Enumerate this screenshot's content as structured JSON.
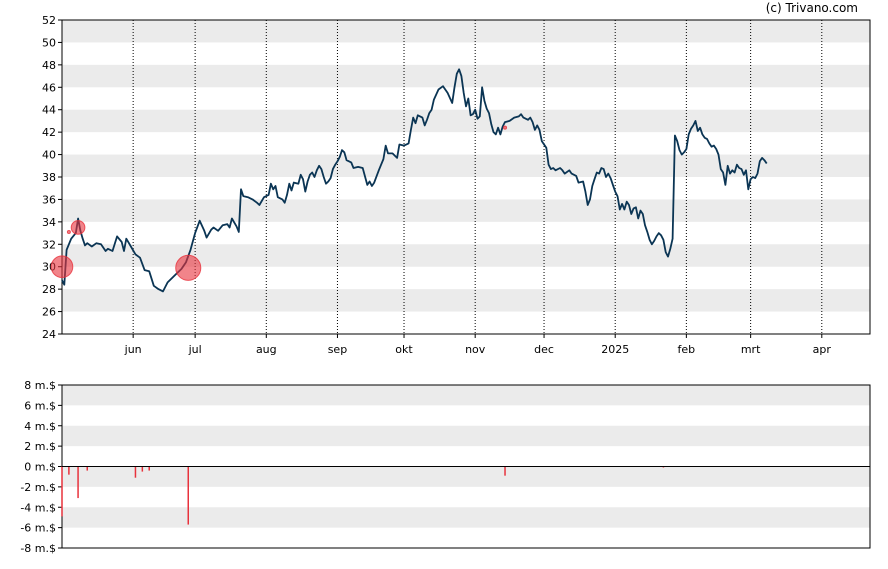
{
  "credit": "(c) Trivano.com",
  "chart_data": [
    {
      "type": "line",
      "ylim": [
        24,
        52
      ],
      "yticks": [
        24,
        26,
        28,
        30,
        32,
        34,
        36,
        38,
        40,
        42,
        44,
        46,
        48,
        50,
        52
      ],
      "xlim": [
        0,
        352
      ],
      "month_ticks": [
        {
          "label": "jun",
          "x": 31
        },
        {
          "label": "jul",
          "x": 58
        },
        {
          "label": "aug",
          "x": 89
        },
        {
          "label": "sep",
          "x": 120
        },
        {
          "label": "okt",
          "x": 149
        },
        {
          "label": "nov",
          "x": 180
        },
        {
          "label": "dec",
          "x": 210
        },
        {
          "label": "2025",
          "x": 241
        },
        {
          "label": "feb",
          "x": 272
        },
        {
          "label": "mrt",
          "x": 300
        },
        {
          "label": "apr",
          "x": 331
        }
      ],
      "grid": "alternating horizontal bands, dotted vertical lines at month ticks",
      "colors": {
        "line": "#0b3554",
        "marker": "#e8323c",
        "band": "#ebebeb"
      },
      "series": [
        {
          "points": [
            [
              0,
              28.8
            ],
            [
              1,
              28.4
            ],
            [
              2,
              31.5
            ],
            [
              4,
              32.5
            ],
            [
              6,
              33.0
            ],
            [
              7,
              34.3
            ],
            [
              8,
              33.2
            ],
            [
              9,
              32.5
            ],
            [
              10,
              31.9
            ],
            [
              11,
              32.1
            ],
            [
              13,
              31.8
            ],
            [
              15,
              32.1
            ],
            [
              17,
              32.0
            ],
            [
              19,
              31.4
            ],
            [
              20,
              31.6
            ],
            [
              22,
              31.4
            ],
            [
              24,
              32.7
            ],
            [
              26,
              32.2
            ],
            [
              27,
              31.4
            ],
            [
              28,
              32.5
            ],
            [
              30,
              31.8
            ],
            [
              32,
              31.1
            ],
            [
              34,
              30.8
            ],
            [
              36,
              29.7
            ],
            [
              38,
              29.6
            ],
            [
              40,
              28.3
            ],
            [
              42,
              28.0
            ],
            [
              44,
              27.8
            ],
            [
              46,
              28.6
            ],
            [
              48,
              29.0
            ],
            [
              50,
              29.4
            ],
            [
              52,
              29.8
            ],
            [
              54,
              30.4
            ],
            [
              56,
              31.5
            ],
            [
              58,
              33.0
            ],
            [
              60,
              34.1
            ],
            [
              62,
              33.2
            ],
            [
              63,
              32.6
            ],
            [
              65,
              33.3
            ],
            [
              66,
              33.5
            ],
            [
              68,
              33.2
            ],
            [
              70,
              33.7
            ],
            [
              72,
              33.8
            ],
            [
              73,
              33.5
            ],
            [
              74,
              34.3
            ],
            [
              76,
              33.6
            ],
            [
              77,
              33.1
            ],
            [
              78,
              36.9
            ],
            [
              79,
              36.3
            ],
            [
              81,
              36.2
            ],
            [
              83,
              36.0
            ],
            [
              85,
              35.7
            ],
            [
              86,
              35.5
            ],
            [
              88,
              36.2
            ],
            [
              90,
              36.4
            ],
            [
              91,
              37.4
            ],
            [
              92,
              36.9
            ],
            [
              93,
              37.2
            ],
            [
              94,
              36.2
            ],
            [
              96,
              36.0
            ],
            [
              97,
              35.7
            ],
            [
              98,
              36.4
            ],
            [
              99,
              37.4
            ],
            [
              100,
              36.8
            ],
            [
              101,
              37.5
            ],
            [
              103,
              37.4
            ],
            [
              104,
              38.2
            ],
            [
              105,
              37.8
            ],
            [
              106,
              36.7
            ],
            [
              107,
              37.6
            ],
            [
              108,
              38.2
            ],
            [
              109,
              38.4
            ],
            [
              110,
              38.0
            ],
            [
              111,
              38.6
            ],
            [
              112,
              39.0
            ],
            [
              113,
              38.7
            ],
            [
              114,
              38.0
            ],
            [
              115,
              37.4
            ],
            [
              116,
              37.6
            ],
            [
              117,
              37.9
            ],
            [
              118,
              38.7
            ],
            [
              119,
              39.1
            ],
            [
              120,
              39.4
            ],
            [
              121,
              39.8
            ],
            [
              122,
              40.4
            ],
            [
              123,
              40.2
            ],
            [
              124,
              39.5
            ],
            [
              126,
              39.3
            ],
            [
              127,
              38.8
            ],
            [
              129,
              38.9
            ],
            [
              131,
              38.8
            ],
            [
              133,
              37.3
            ],
            [
              134,
              37.6
            ],
            [
              135,
              37.2
            ],
            [
              136,
              37.5
            ],
            [
              138,
              38.6
            ],
            [
              140,
              39.6
            ],
            [
              141,
              40.8
            ],
            [
              142,
              40.1
            ],
            [
              144,
              40.1
            ],
            [
              146,
              39.7
            ],
            [
              147,
              40.9
            ],
            [
              149,
              40.8
            ],
            [
              151,
              41.0
            ],
            [
              152,
              42.2
            ],
            [
              153,
              43.3
            ],
            [
              154,
              42.8
            ],
            [
              155,
              43.5
            ],
            [
              157,
              43.3
            ],
            [
              158,
              42.6
            ],
            [
              159,
              43.1
            ],
            [
              160,
              43.7
            ],
            [
              161,
              44.0
            ],
            [
              162,
              44.9
            ],
            [
              164,
              45.8
            ],
            [
              166,
              46.1
            ],
            [
              168,
              45.5
            ],
            [
              170,
              44.6
            ],
            [
              171,
              46.0
            ],
            [
              172,
              47.2
            ],
            [
              173,
              47.6
            ],
            [
              174,
              47.0
            ],
            [
              175,
              45.5
            ],
            [
              176,
              44.3
            ],
            [
              177,
              45.0
            ],
            [
              178,
              43.5
            ],
            [
              179,
              43.6
            ],
            [
              180,
              44.0
            ],
            [
              181,
              43.2
            ],
            [
              182,
              43.4
            ],
            [
              183,
              46.0
            ],
            [
              184,
              44.8
            ],
            [
              185,
              44.1
            ],
            [
              186,
              43.7
            ],
            [
              187,
              42.7
            ],
            [
              188,
              42.0
            ],
            [
              189,
              41.8
            ],
            [
              190,
              42.4
            ],
            [
              191,
              41.8
            ],
            [
              192,
              42.5
            ],
            [
              193,
              42.9
            ],
            [
              195,
              43.0
            ],
            [
              197,
              43.3
            ],
            [
              199,
              43.4
            ],
            [
              200,
              43.6
            ],
            [
              201,
              43.3
            ],
            [
              203,
              43.1
            ],
            [
              204,
              43.3
            ],
            [
              205,
              42.9
            ],
            [
              206,
              42.2
            ],
            [
              207,
              42.6
            ],
            [
              208,
              42.2
            ],
            [
              209,
              41.2
            ],
            [
              211,
              40.6
            ],
            [
              212,
              39.1
            ],
            [
              213,
              38.7
            ],
            [
              214,
              38.8
            ],
            [
              215,
              38.6
            ],
            [
              217,
              38.8
            ],
            [
              218,
              38.6
            ],
            [
              219,
              38.3
            ],
            [
              221,
              38.6
            ],
            [
              222,
              38.3
            ],
            [
              224,
              38.1
            ],
            [
              225,
              37.5
            ],
            [
              227,
              37.6
            ],
            [
              228,
              36.7
            ],
            [
              229,
              35.5
            ],
            [
              230,
              36.0
            ],
            [
              231,
              37.2
            ],
            [
              232,
              37.8
            ],
            [
              233,
              38.4
            ],
            [
              234,
              38.3
            ],
            [
              235,
              38.8
            ],
            [
              236,
              38.7
            ],
            [
              237,
              38.0
            ],
            [
              238,
              38.3
            ],
            [
              239,
              37.9
            ],
            [
              240,
              37.3
            ],
            [
              241,
              36.7
            ],
            [
              242,
              36.3
            ],
            [
              243,
              35.1
            ],
            [
              244,
              35.6
            ],
            [
              245,
              35.1
            ],
            [
              246,
              35.8
            ],
            [
              247,
              35.5
            ],
            [
              248,
              34.7
            ],
            [
              249,
              35.2
            ],
            [
              250,
              35.3
            ],
            [
              251,
              34.3
            ],
            [
              252,
              35.0
            ],
            [
              253,
              34.7
            ],
            [
              254,
              33.7
            ],
            [
              255,
              33.1
            ],
            [
              256,
              32.4
            ],
            [
              257,
              32.0
            ],
            [
              258,
              32.3
            ],
            [
              259,
              32.7
            ],
            [
              260,
              33.0
            ],
            [
              261,
              32.8
            ],
            [
              262,
              32.4
            ],
            [
              263,
              31.3
            ],
            [
              264,
              30.9
            ],
            [
              265,
              31.6
            ],
            [
              266,
              32.5
            ],
            [
              267,
              41.7
            ],
            [
              268,
              41.2
            ],
            [
              269,
              40.4
            ],
            [
              270,
              40.0
            ],
            [
              271,
              40.2
            ],
            [
              272,
              40.5
            ],
            [
              273,
              41.8
            ],
            [
              274,
              42.3
            ],
            [
              275,
              42.6
            ],
            [
              276,
              43.0
            ],
            [
              277,
              42.1
            ],
            [
              278,
              42.4
            ],
            [
              279,
              41.8
            ],
            [
              280,
              41.5
            ],
            [
              281,
              41.4
            ],
            [
              282,
              41.0
            ],
            [
              283,
              40.7
            ],
            [
              284,
              40.8
            ],
            [
              285,
              40.5
            ],
            [
              286,
              40.0
            ],
            [
              287,
              38.7
            ],
            [
              288,
              38.4
            ],
            [
              289,
              37.3
            ],
            [
              290,
              39.0
            ],
            [
              291,
              38.3
            ],
            [
              292,
              38.6
            ],
            [
              293,
              38.4
            ],
            [
              294,
              39.1
            ],
            [
              295,
              38.8
            ],
            [
              296,
              38.7
            ],
            [
              297,
              38.2
            ],
            [
              298,
              38.6
            ],
            [
              299,
              36.9
            ],
            [
              300,
              37.8
            ],
            [
              301,
              38.0
            ],
            [
              302,
              37.9
            ],
            [
              303,
              38.3
            ],
            [
              304,
              39.4
            ],
            [
              305,
              39.7
            ],
            [
              306,
              39.5
            ],
            [
              307,
              39.2
            ]
          ]
        }
      ],
      "events": [
        {
          "x": 0,
          "y": 30.0,
          "size": 4.9
        },
        {
          "x": 3,
          "y": 33.1,
          "size": 0.6
        },
        {
          "x": 7,
          "y": 33.5,
          "size": 3.1
        },
        {
          "x": 55,
          "y": 29.9,
          "size": 5.7
        },
        {
          "x": 193,
          "y": 42.4,
          "size": 0.7
        }
      ]
    },
    {
      "type": "bar",
      "ylim": [
        -8,
        8
      ],
      "yticks": [
        {
          "value": 8,
          "label": "8 m.$"
        },
        {
          "value": 6,
          "label": "6 m.$"
        },
        {
          "value": 4,
          "label": "4 m.$"
        },
        {
          "value": 2,
          "label": "2 m.$"
        },
        {
          "value": 0,
          "label": "0 m.$"
        },
        {
          "value": -2,
          "label": "-2 m.$"
        },
        {
          "value": -4,
          "label": "-4 m.$"
        },
        {
          "value": -6,
          "label": "-6 m.$"
        },
        {
          "value": -8,
          "label": "-8 m.$"
        }
      ],
      "colors": {
        "bar": "#e8323c",
        "band": "#ebebeb"
      },
      "bars": [
        {
          "x": 0,
          "value": -4.9
        },
        {
          "x": 3,
          "value": -0.8
        },
        {
          "x": 7,
          "value": -3.1
        },
        {
          "x": 11,
          "value": -0.4
        },
        {
          "x": 32,
          "value": -1.1
        },
        {
          "x": 35,
          "value": -0.5
        },
        {
          "x": 38,
          "value": -0.4
        },
        {
          "x": 55,
          "value": -5.7
        },
        {
          "x": 193,
          "value": -0.9
        },
        {
          "x": 262,
          "value": -0.1
        }
      ]
    }
  ]
}
